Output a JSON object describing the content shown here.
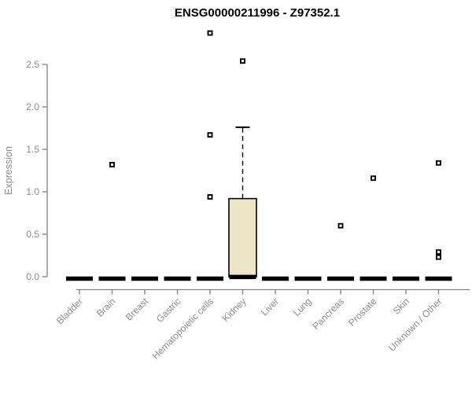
{
  "header": {
    "title": "ENSG00000211996 - Z97352.1"
  },
  "chart_data": {
    "type": "boxplot",
    "title": "ENSG00000211996 - Z97352.1",
    "xlabel": "",
    "ylabel": "Expression",
    "ylim": [
      0,
      2.9
    ],
    "yticks": [
      0.0,
      0.5,
      1.0,
      1.5,
      2.0,
      2.5
    ],
    "grid": false,
    "legend": false,
    "categories": [
      "Bladder",
      "Brain",
      "Breast",
      "Gastric",
      "Hematopoietic cells",
      "Kidney",
      "Liver",
      "Lung",
      "Pancreas",
      "Prostate",
      "Skin",
      "Unknown / Other"
    ],
    "series": [
      {
        "category": "Bladder",
        "median": 0,
        "q1": 0,
        "q3": 0,
        "whisker_low": 0,
        "whisker_high": 0,
        "outliers": []
      },
      {
        "category": "Brain",
        "median": 0,
        "q1": 0,
        "q3": 0,
        "whisker_low": 0,
        "whisker_high": 0,
        "outliers": [
          1.32
        ]
      },
      {
        "category": "Breast",
        "median": 0,
        "q1": 0,
        "q3": 0,
        "whisker_low": 0,
        "whisker_high": 0,
        "outliers": []
      },
      {
        "category": "Gastric",
        "median": 0,
        "q1": 0,
        "q3": 0,
        "whisker_low": 0,
        "whisker_high": 0,
        "outliers": []
      },
      {
        "category": "Hematopoietic cells",
        "median": 0,
        "q1": 0,
        "q3": 0,
        "whisker_low": 0,
        "whisker_high": 0,
        "outliers": [
          2.87,
          1.67,
          0.94
        ]
      },
      {
        "category": "Kidney",
        "median": 0.02,
        "q1": 0,
        "q3": 0.92,
        "whisker_low": 0,
        "whisker_high": 1.76,
        "outliers": [
          2.54
        ]
      },
      {
        "category": "Liver",
        "median": 0,
        "q1": 0,
        "q3": 0,
        "whisker_low": 0,
        "whisker_high": 0,
        "outliers": []
      },
      {
        "category": "Lung",
        "median": 0,
        "q1": 0,
        "q3": 0,
        "whisker_low": 0,
        "whisker_high": 0,
        "outliers": []
      },
      {
        "category": "Pancreas",
        "median": 0,
        "q1": 0,
        "q3": 0,
        "whisker_low": 0,
        "whisker_high": 0,
        "outliers": [
          0.6
        ]
      },
      {
        "category": "Prostate",
        "median": 0,
        "q1": 0,
        "q3": 0,
        "whisker_low": 0,
        "whisker_high": 0,
        "outliers": [
          1.16
        ]
      },
      {
        "category": "Skin",
        "median": 0,
        "q1": 0,
        "q3": 0,
        "whisker_low": 0,
        "whisker_high": 0,
        "outliers": []
      },
      {
        "category": "Unknown / Other",
        "median": 0,
        "q1": 0,
        "q3": 0,
        "whisker_low": 0,
        "whisker_high": 0,
        "outliers": [
          1.34,
          0.29,
          0.23
        ]
      }
    ],
    "colors": {
      "box_fill": "#ece5c8",
      "box_border": "#000000",
      "median": "#000000",
      "whisker": "#000000",
      "outlier_stroke": "#000000",
      "outlier_fill": "#ffffff",
      "axis_line": "#7f7f7f",
      "tick_text": "#8c8c8c",
      "title_text": "#000000",
      "background": "#ffffff"
    }
  }
}
